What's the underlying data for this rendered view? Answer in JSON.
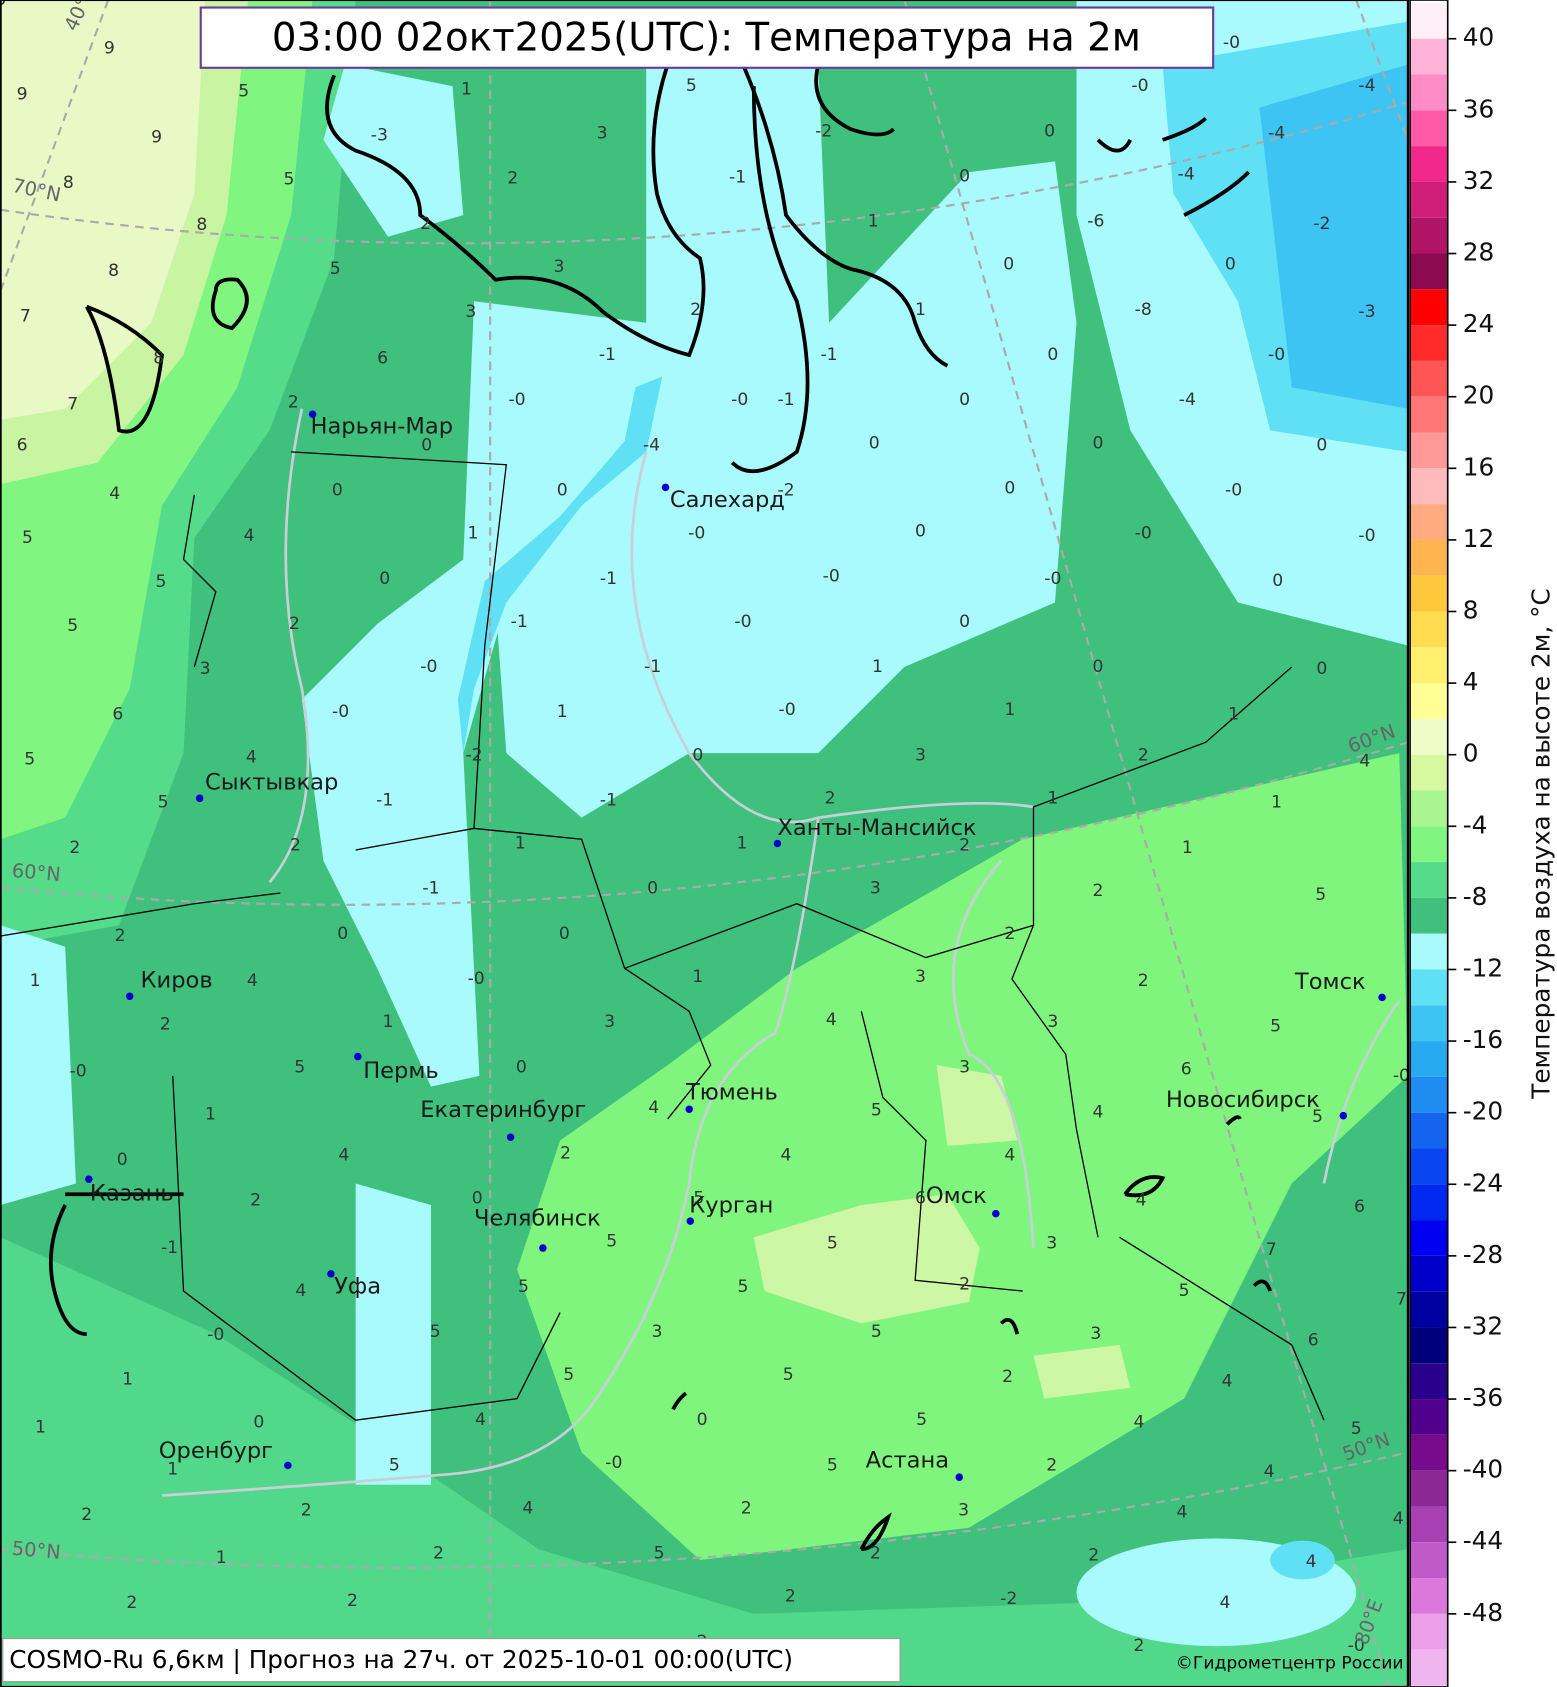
{
  "header": {
    "title": "03:00 02окт2025(UTC): Температура на 2м"
  },
  "footer": {
    "left": "COSMO-Ru 6,6км | Прогноз на  27ч. от 2025-10-01 00:00(UTC)",
    "right": "©Гидрометцентр России"
  },
  "colorbar": {
    "label": "Температура воздуха на высоте 2м, °C",
    "ticks": [
      40,
      36,
      32,
      28,
      24,
      20,
      16,
      12,
      8,
      4,
      0,
      -4,
      -8,
      -12,
      -16,
      -20,
      -24,
      -28,
      -32,
      -36,
      -40,
      -44,
      -48
    ]
  },
  "graticule": [
    "70°N",
    "60°N",
    "50°N",
    "40°E",
    "60°N",
    "50°N",
    "80°E"
  ],
  "cities": [
    "Нарьян-Мар",
    "Салехард",
    "Сыктывкар",
    "Ханты-Мансийск",
    "Киров",
    "Пермь",
    "Екатеринбург",
    "Тюмень",
    "Томск",
    "Новосибирск",
    "Омск",
    "Курган",
    "Казань",
    "Челябинск",
    "Уфа",
    "Оренбург",
    "Астана"
  ],
  "values": [
    "9",
    "9",
    "9",
    "8",
    "8",
    "8",
    "7",
    "8",
    "7",
    "5",
    "5",
    "5",
    "6",
    "2",
    "6",
    "4",
    "5",
    "4",
    "5",
    "5",
    "2",
    "3",
    "6",
    "4",
    "5",
    "5",
    "2",
    "2",
    "2",
    "4",
    "1",
    "2",
    "-0",
    "1",
    "0",
    "2",
    "-1",
    "4",
    "-0",
    "1",
    "1",
    "0",
    "1",
    "2",
    "2",
    "1",
    "2",
    "2",
    "1",
    "-3",
    "3",
    "2",
    "2",
    "3",
    "3",
    "-1",
    "-0",
    "0",
    "-4",
    "0",
    "0",
    "1",
    "-0",
    "0",
    "-1",
    "-1",
    "-0",
    "-0",
    "-1",
    "-0",
    "1",
    "-0",
    "-2",
    "0",
    "-1",
    "-1",
    "1",
    "1",
    "-1",
    "0",
    "0",
    "0",
    "-0",
    "1",
    "1",
    "3",
    "0",
    "5",
    "4",
    "2",
    "4",
    "0",
    "5",
    "5",
    "5",
    "5",
    "3",
    "5",
    "4",
    "0",
    "5",
    "-0",
    "4",
    "2",
    "2",
    "5",
    "5",
    "-1",
    "-2",
    "2",
    "1",
    "-1",
    "-0",
    "-1",
    "1",
    "0",
    "0",
    "0",
    "-0",
    "-0",
    "-4",
    "-4",
    "-4",
    "-2",
    "-6",
    "0",
    "-3",
    "-8",
    "0",
    "0",
    "-0",
    "-4",
    "0",
    "0",
    "0",
    "-2",
    "0",
    "0",
    "-0",
    "-0",
    "-0",
    "-0",
    "-0",
    "0",
    "0",
    "1",
    "0",
    "0",
    "1",
    "1",
    "3",
    "2",
    "4",
    "2",
    "1",
    "1",
    "2",
    "1",
    "3",
    "2",
    "5",
    "2",
    "3",
    "2",
    "4",
    "3",
    "5",
    "3",
    "6",
    "5",
    "4",
    "5",
    "4",
    "4",
    "6",
    "4",
    "6",
    "5",
    "3",
    "7",
    "5",
    "2",
    "5",
    "7",
    "5",
    "3",
    "6",
    "5",
    "2",
    "4",
    "5",
    "4",
    "5",
    "5",
    "2",
    "4",
    "3",
    "4",
    "4",
    "2",
    "2",
    "4",
    "2",
    "-2",
    "4",
    "2",
    "-0",
    "-0",
    "2",
    "3",
    "3"
  ]
}
